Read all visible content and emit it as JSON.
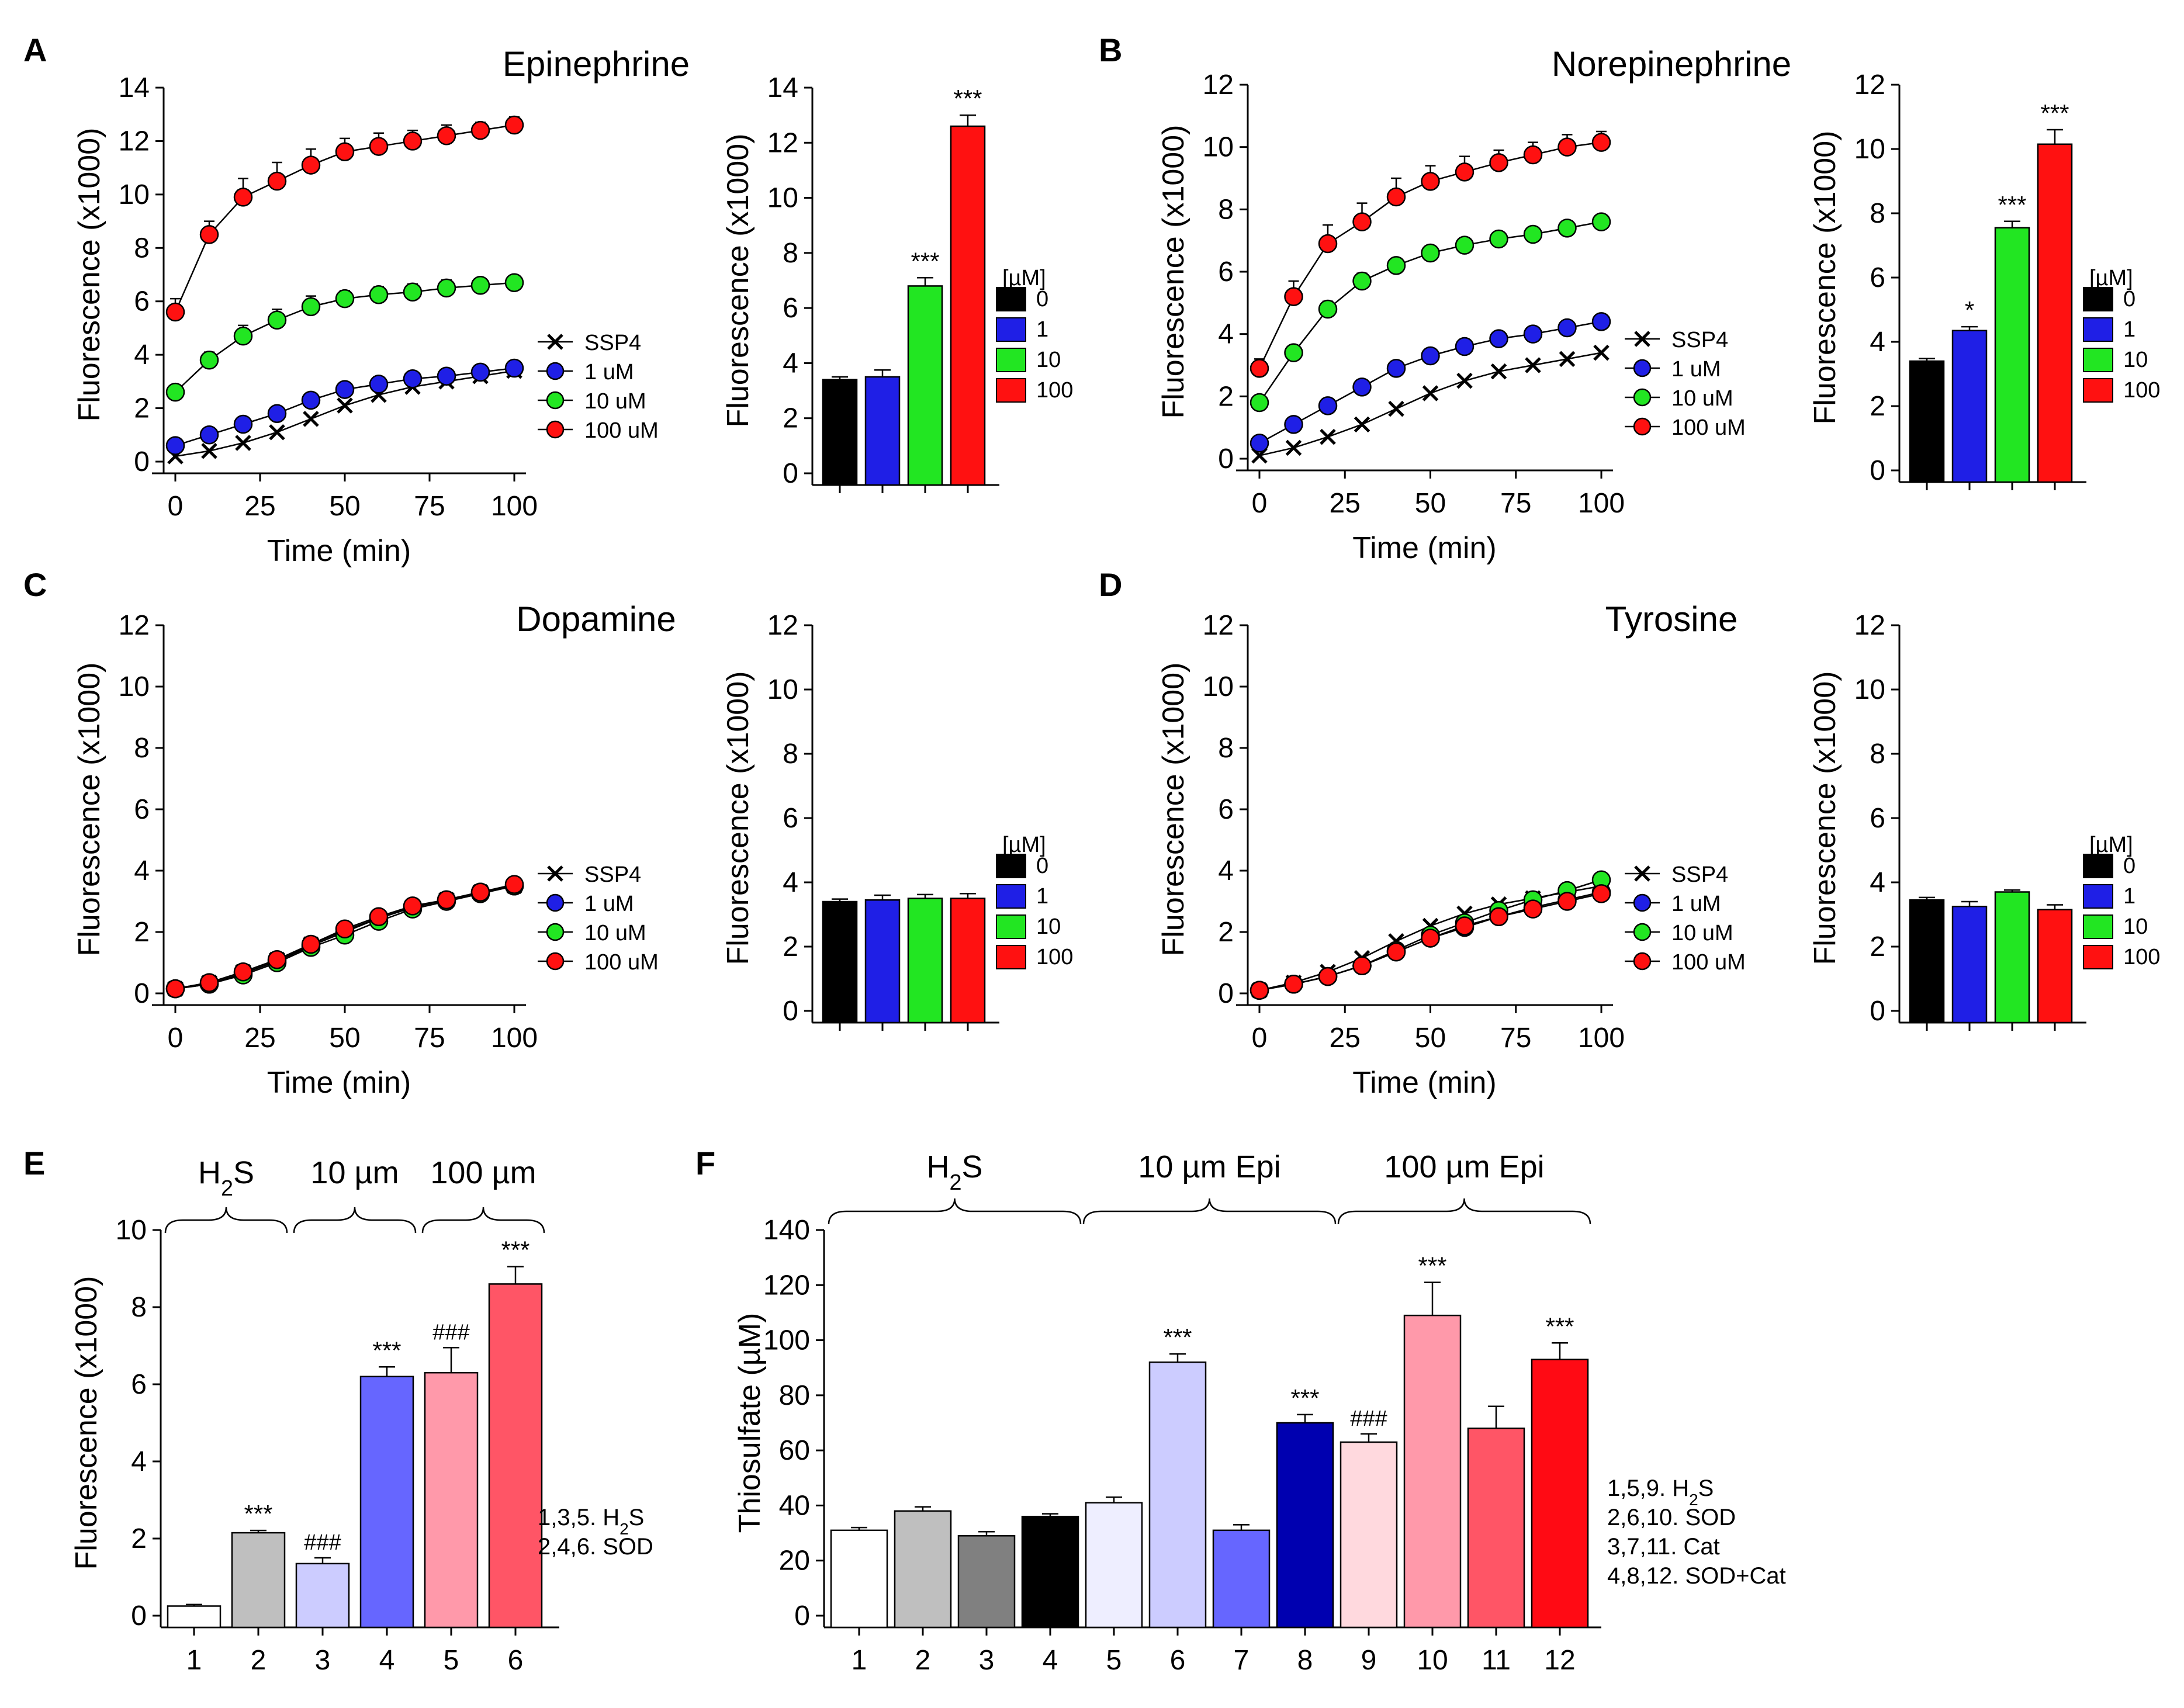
{
  "figure": {
    "line_legend": [
      "SSP4",
      "1 uM",
      "10 uM",
      "100 uM"
    ],
    "bar_legend_title": "[µM]",
    "bar_legend": [
      "0",
      "1",
      "10",
      "100"
    ],
    "colors": {
      "black": "#000000",
      "blue": "#1f1fe6",
      "green": "#22e622",
      "red": "#ff1111"
    },
    "icons": [
      "x-marker-icon",
      "circle-marker-icon"
    ]
  },
  "chart_data": [
    {
      "id": "A-line",
      "panel_letter": "A",
      "type": "line",
      "title": "Epinephrine",
      "xlabel": "Time (min)",
      "ylabel": "Fluorescence (x1000)",
      "xlim": [
        0,
        100
      ],
      "ylim": [
        0,
        14
      ],
      "xticks": [
        0,
        25,
        50,
        75,
        100
      ],
      "yticks": [
        0,
        2,
        4,
        6,
        8,
        10,
        12,
        14
      ],
      "x": [
        0,
        10,
        20,
        30,
        40,
        50,
        60,
        70,
        80,
        90,
        100
      ],
      "series": [
        {
          "name": "SSP4",
          "color": "#000000",
          "marker": "x",
          "values": [
            0.2,
            0.4,
            0.7,
            1.1,
            1.6,
            2.1,
            2.5,
            2.8,
            3.0,
            3.2,
            3.4
          ]
        },
        {
          "name": "1 uM",
          "color": "#1f1fe6",
          "marker": "circle",
          "values": [
            0.6,
            1.0,
            1.4,
            1.8,
            2.3,
            2.7,
            2.9,
            3.1,
            3.2,
            3.35,
            3.5
          ],
          "errors": [
            0.1,
            0.1,
            0.15,
            0.15,
            0.2,
            0.2,
            0.2,
            0.2,
            0.2,
            0.2,
            0.2
          ]
        },
        {
          "name": "10 uM",
          "color": "#22e622",
          "marker": "circle",
          "values": [
            2.6,
            3.8,
            4.7,
            5.3,
            5.8,
            6.1,
            6.25,
            6.35,
            6.5,
            6.6,
            6.7
          ],
          "errors": [
            0.2,
            0.3,
            0.4,
            0.4,
            0.4,
            0.3,
            0.3,
            0.3,
            0.3,
            0.2,
            0.2
          ]
        },
        {
          "name": "100 uM",
          "color": "#ff1111",
          "marker": "circle",
          "values": [
            5.6,
            8.5,
            9.9,
            10.5,
            11.1,
            11.6,
            11.8,
            12.0,
            12.2,
            12.4,
            12.6
          ],
          "errors": [
            0.5,
            0.5,
            0.7,
            0.7,
            0.6,
            0.5,
            0.5,
            0.4,
            0.4,
            0.3,
            0.3
          ]
        }
      ]
    },
    {
      "id": "A-bar",
      "type": "bar",
      "ylabel": "Fluorescence (x1000)",
      "ylim": [
        0,
        14
      ],
      "yticks": [
        0,
        2,
        4,
        6,
        8,
        10,
        12,
        14
      ],
      "categories": [
        "0",
        "1",
        "10",
        "100"
      ],
      "values": [
        3.4,
        3.5,
        6.8,
        12.6
      ],
      "errors": [
        0.1,
        0.25,
        0.3,
        0.4
      ],
      "colors": [
        "#000000",
        "#1f1fe6",
        "#22e622",
        "#ff1111"
      ],
      "annotations": [
        "",
        "",
        "***",
        "***"
      ]
    },
    {
      "id": "B-line",
      "panel_letter": "B",
      "type": "line",
      "title": "Norepinephrine",
      "xlabel": "Time (min)",
      "ylabel": "Fluorescence (x1000)",
      "xlim": [
        0,
        100
      ],
      "ylim": [
        0,
        12
      ],
      "xticks": [
        0,
        25,
        50,
        75,
        100
      ],
      "yticks": [
        0,
        2,
        4,
        6,
        8,
        10,
        12
      ],
      "x": [
        0,
        10,
        20,
        30,
        40,
        50,
        60,
        70,
        80,
        90,
        100
      ],
      "series": [
        {
          "name": "SSP4",
          "color": "#000000",
          "marker": "x",
          "values": [
            0.1,
            0.35,
            0.7,
            1.1,
            1.6,
            2.1,
            2.5,
            2.8,
            3.0,
            3.2,
            3.4
          ]
        },
        {
          "name": "1 uM",
          "color": "#1f1fe6",
          "marker": "circle",
          "values": [
            0.5,
            1.1,
            1.7,
            2.3,
            2.9,
            3.3,
            3.6,
            3.85,
            4.0,
            4.2,
            4.4
          ],
          "errors": [
            0.1,
            0.1,
            0.15,
            0.15,
            0.15,
            0.15,
            0.15,
            0.15,
            0.15,
            0.15,
            0.15
          ]
        },
        {
          "name": "10 uM",
          "color": "#22e622",
          "marker": "circle",
          "values": [
            1.8,
            3.4,
            4.8,
            5.7,
            6.2,
            6.6,
            6.85,
            7.05,
            7.2,
            7.4,
            7.6
          ],
          "errors": [
            0.15,
            0.2,
            0.25,
            0.25,
            0.2,
            0.2,
            0.2,
            0.2,
            0.2,
            0.2,
            0.2
          ]
        },
        {
          "name": "100 uM",
          "color": "#ff1111",
          "marker": "circle",
          "values": [
            2.9,
            5.2,
            6.9,
            7.6,
            8.4,
            8.9,
            9.2,
            9.5,
            9.75,
            10.0,
            10.15
          ],
          "errors": [
            0.3,
            0.5,
            0.6,
            0.6,
            0.6,
            0.5,
            0.5,
            0.4,
            0.4,
            0.4,
            0.35
          ]
        }
      ]
    },
    {
      "id": "B-bar",
      "type": "bar",
      "ylabel": "Fluorescence (x1000)",
      "ylim": [
        0,
        12
      ],
      "yticks": [
        0,
        2,
        4,
        6,
        8,
        10,
        12
      ],
      "categories": [
        "0",
        "1",
        "10",
        "100"
      ],
      "values": [
        3.4,
        4.35,
        7.55,
        10.15
      ],
      "errors": [
        0.08,
        0.12,
        0.2,
        0.45
      ],
      "colors": [
        "#000000",
        "#1f1fe6",
        "#22e622",
        "#ff1111"
      ],
      "annotations": [
        "",
        "*",
        "***",
        "***"
      ]
    },
    {
      "id": "C-line",
      "panel_letter": "C",
      "type": "line",
      "title": "Dopamine",
      "xlabel": "Time (min)",
      "ylabel": "Fluorescence (x1000)",
      "xlim": [
        0,
        100
      ],
      "ylim": [
        0,
        12
      ],
      "xticks": [
        0,
        25,
        50,
        75,
        100
      ],
      "yticks": [
        0,
        2,
        4,
        6,
        8,
        10,
        12
      ],
      "x": [
        0,
        10,
        20,
        30,
        40,
        50,
        60,
        70,
        80,
        90,
        100
      ],
      "series": [
        {
          "name": "SSP4",
          "color": "#000000",
          "marker": "x",
          "values": [
            0.15,
            0.35,
            0.7,
            1.1,
            1.6,
            2.05,
            2.45,
            2.8,
            3.05,
            3.3,
            3.5
          ]
        },
        {
          "name": "1 uM",
          "color": "#1f1fe6",
          "marker": "circle",
          "values": [
            0.15,
            0.3,
            0.65,
            1.05,
            1.55,
            2.0,
            2.45,
            2.8,
            3.05,
            3.3,
            3.5
          ]
        },
        {
          "name": "10 uM",
          "color": "#22e622",
          "marker": "circle",
          "values": [
            0.15,
            0.3,
            0.6,
            1.0,
            1.5,
            1.9,
            2.35,
            2.75,
            3.0,
            3.25,
            3.5
          ]
        },
        {
          "name": "100 uM",
          "color": "#ff1111",
          "marker": "circle",
          "values": [
            0.15,
            0.35,
            0.7,
            1.1,
            1.6,
            2.1,
            2.5,
            2.85,
            3.05,
            3.3,
            3.55
          ]
        }
      ]
    },
    {
      "id": "C-bar",
      "type": "bar",
      "ylabel": "Fluorescence (x1000)",
      "ylim": [
        0,
        12
      ],
      "yticks": [
        0,
        2,
        4,
        6,
        8,
        10,
        12
      ],
      "categories": [
        "0",
        "1",
        "10",
        "100"
      ],
      "values": [
        3.4,
        3.45,
        3.5,
        3.5
      ],
      "errors": [
        0.08,
        0.15,
        0.12,
        0.15
      ],
      "colors": [
        "#000000",
        "#1f1fe6",
        "#22e622",
        "#ff1111"
      ],
      "annotations": [
        "",
        "",
        "",
        ""
      ]
    },
    {
      "id": "D-line",
      "panel_letter": "D",
      "type": "line",
      "title": "Tyrosine",
      "xlabel": "Time (min)",
      "ylabel": "Fluorescence (x1000)",
      "xlim": [
        0,
        100
      ],
      "ylim": [
        0,
        12
      ],
      "xticks": [
        0,
        25,
        50,
        75,
        100
      ],
      "yticks": [
        0,
        2,
        4,
        6,
        8,
        10,
        12
      ],
      "x": [
        0,
        10,
        20,
        30,
        40,
        50,
        60,
        70,
        80,
        90,
        100
      ],
      "series": [
        {
          "name": "SSP4",
          "color": "#000000",
          "marker": "x",
          "values": [
            0.1,
            0.35,
            0.7,
            1.15,
            1.7,
            2.2,
            2.6,
            2.9,
            3.1,
            3.3,
            3.5
          ]
        },
        {
          "name": "1 uM",
          "color": "#1f1fe6",
          "marker": "circle",
          "values": [
            0.1,
            0.3,
            0.55,
            0.9,
            1.35,
            1.8,
            2.15,
            2.5,
            2.8,
            3.05,
            3.3
          ]
        },
        {
          "name": "10 uM",
          "color": "#22e622",
          "marker": "circle",
          "values": [
            0.1,
            0.3,
            0.55,
            0.9,
            1.4,
            1.9,
            2.3,
            2.7,
            3.05,
            3.35,
            3.7
          ]
        },
        {
          "name": "100 uM",
          "color": "#ff1111",
          "marker": "circle",
          "values": [
            0.1,
            0.3,
            0.55,
            0.9,
            1.35,
            1.8,
            2.2,
            2.5,
            2.75,
            3.0,
            3.25
          ]
        }
      ]
    },
    {
      "id": "D-bar",
      "type": "bar",
      "ylabel": "Fluorescence (x1000)",
      "ylim": [
        0,
        12
      ],
      "yticks": [
        0,
        2,
        4,
        6,
        8,
        10,
        12
      ],
      "categories": [
        "0",
        "1",
        "10",
        "100"
      ],
      "values": [
        3.45,
        3.25,
        3.7,
        3.15
      ],
      "errors": [
        0.08,
        0.15,
        0.06,
        0.15
      ],
      "colors": [
        "#000000",
        "#1f1fe6",
        "#22e622",
        "#ff1111"
      ],
      "annotations": [
        "",
        "",
        "",
        ""
      ]
    },
    {
      "id": "E-bar",
      "panel_letter": "E",
      "type": "bar",
      "ylabel": "Fluorescence (x1000)",
      "ylim": [
        0,
        10
      ],
      "yticks": [
        0,
        2,
        4,
        6,
        8,
        10
      ],
      "categories": [
        "1",
        "2",
        "3",
        "4",
        "5",
        "6"
      ],
      "values": [
        0.25,
        2.15,
        1.35,
        6.2,
        6.3,
        8.6
      ],
      "errors": [
        0.04,
        0.06,
        0.15,
        0.25,
        0.65,
        0.45
      ],
      "colors": [
        "#ffffff",
        "#bfbfbf",
        "#ccccff",
        "#6666ff",
        "#ff99aa",
        "#ff5566"
      ],
      "annotations": [
        "",
        "***",
        "###",
        "***",
        "###",
        "***"
      ],
      "groups": [
        {
          "label": "H2S",
          "label_main": "H",
          "label_sub": "2",
          "label_tail": "S",
          "from": 1,
          "to": 2
        },
        {
          "label": "10 µm",
          "from": 3,
          "to": 4
        },
        {
          "label": "100 µm",
          "from": 5,
          "to": 6
        }
      ],
      "notes": [
        {
          "main": "1,3,5. H",
          "sub": "2",
          "tail": "S"
        },
        {
          "main": "2,4,6. SOD",
          "sub": "",
          "tail": ""
        }
      ]
    },
    {
      "id": "F-bar",
      "panel_letter": "F",
      "type": "bar",
      "ylabel": "Thiosulfate (µM)",
      "ylim": [
        0,
        140
      ],
      "yticks": [
        0,
        20,
        40,
        60,
        80,
        100,
        120,
        140
      ],
      "categories": [
        "1",
        "2",
        "3",
        "4",
        "5",
        "6",
        "7",
        "8",
        "9",
        "10",
        "11",
        "12"
      ],
      "values": [
        31,
        38,
        29,
        36,
        41,
        92,
        31,
        70,
        63,
        109,
        68,
        93
      ],
      "errors": [
        1,
        1.5,
        1.5,
        1,
        2,
        3,
        2,
        3,
        3,
        12,
        8,
        6
      ],
      "colors": [
        "#ffffff",
        "#bfbfbf",
        "#808080",
        "#000000",
        "#eeeeff",
        "#ccccff",
        "#6666ff",
        "#0000b0",
        "#ffd9de",
        "#ff99aa",
        "#ff5566",
        "#ff0a14"
      ],
      "annotations": [
        "",
        "",
        "",
        "",
        "",
        "***",
        "",
        "***",
        "###",
        "***",
        "",
        "***"
      ],
      "groups": [
        {
          "label": "H2S",
          "label_main": "H",
          "label_sub": "2",
          "label_tail": "S",
          "from": 1,
          "to": 4
        },
        {
          "label": "10 µm Epi",
          "from": 5,
          "to": 8
        },
        {
          "label": "100 µm Epi",
          "from": 9,
          "to": 12
        }
      ],
      "notes": [
        {
          "main": "1,5,9. H",
          "sub": "2",
          "tail": "S"
        },
        {
          "main": "2,6,10. SOD",
          "sub": "",
          "tail": ""
        },
        {
          "main": "3,7,11. Cat",
          "sub": "",
          "tail": ""
        },
        {
          "main": "4,8,12. SOD+Cat",
          "sub": "",
          "tail": ""
        }
      ]
    }
  ]
}
